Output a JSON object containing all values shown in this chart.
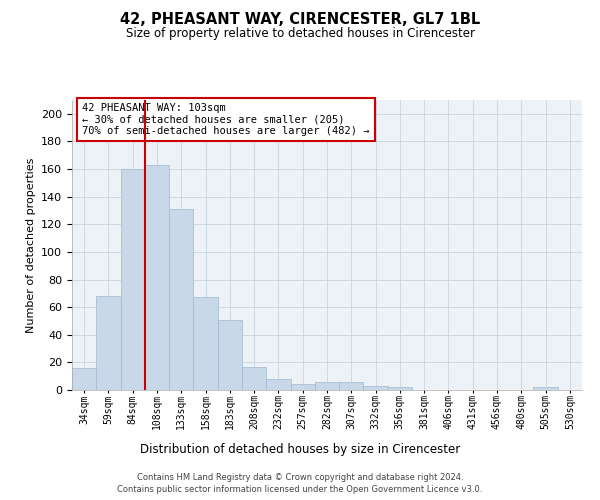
{
  "title1": "42, PHEASANT WAY, CIRENCESTER, GL7 1BL",
  "title2": "Size of property relative to detached houses in Cirencester",
  "xlabel": "Distribution of detached houses by size in Cirencester",
  "ylabel": "Number of detached properties",
  "bar_color": "#c8d8e8",
  "bar_edge_color": "#a0b8d0",
  "vline_color": "#cc0000",
  "categories": [
    "34sqm",
    "59sqm",
    "84sqm",
    "108sqm",
    "133sqm",
    "158sqm",
    "183sqm",
    "208sqm",
    "232sqm",
    "257sqm",
    "282sqm",
    "307sqm",
    "332sqm",
    "356sqm",
    "381sqm",
    "406sqm",
    "431sqm",
    "456sqm",
    "480sqm",
    "505sqm",
    "530sqm"
  ],
  "values": [
    16,
    68,
    160,
    163,
    131,
    67,
    51,
    17,
    8,
    4,
    6,
    6,
    3,
    2,
    0,
    0,
    0,
    0,
    0,
    2,
    0
  ],
  "ylim": [
    0,
    210
  ],
  "yticks": [
    0,
    20,
    40,
    60,
    80,
    100,
    120,
    140,
    160,
    180,
    200
  ],
  "annotation_text": "42 PHEASANT WAY: 103sqm\n← 30% of detached houses are smaller (205)\n70% of semi-detached houses are larger (482) →",
  "annotation_box_color": "#ffffff",
  "annotation_box_edge": "#cc0000",
  "footer1": "Contains HM Land Registry data © Crown copyright and database right 2024.",
  "footer2": "Contains public sector information licensed under the Open Government Licence v3.0.",
  "background_color": "#edf2f7",
  "grid_color": "#c8d4e0"
}
